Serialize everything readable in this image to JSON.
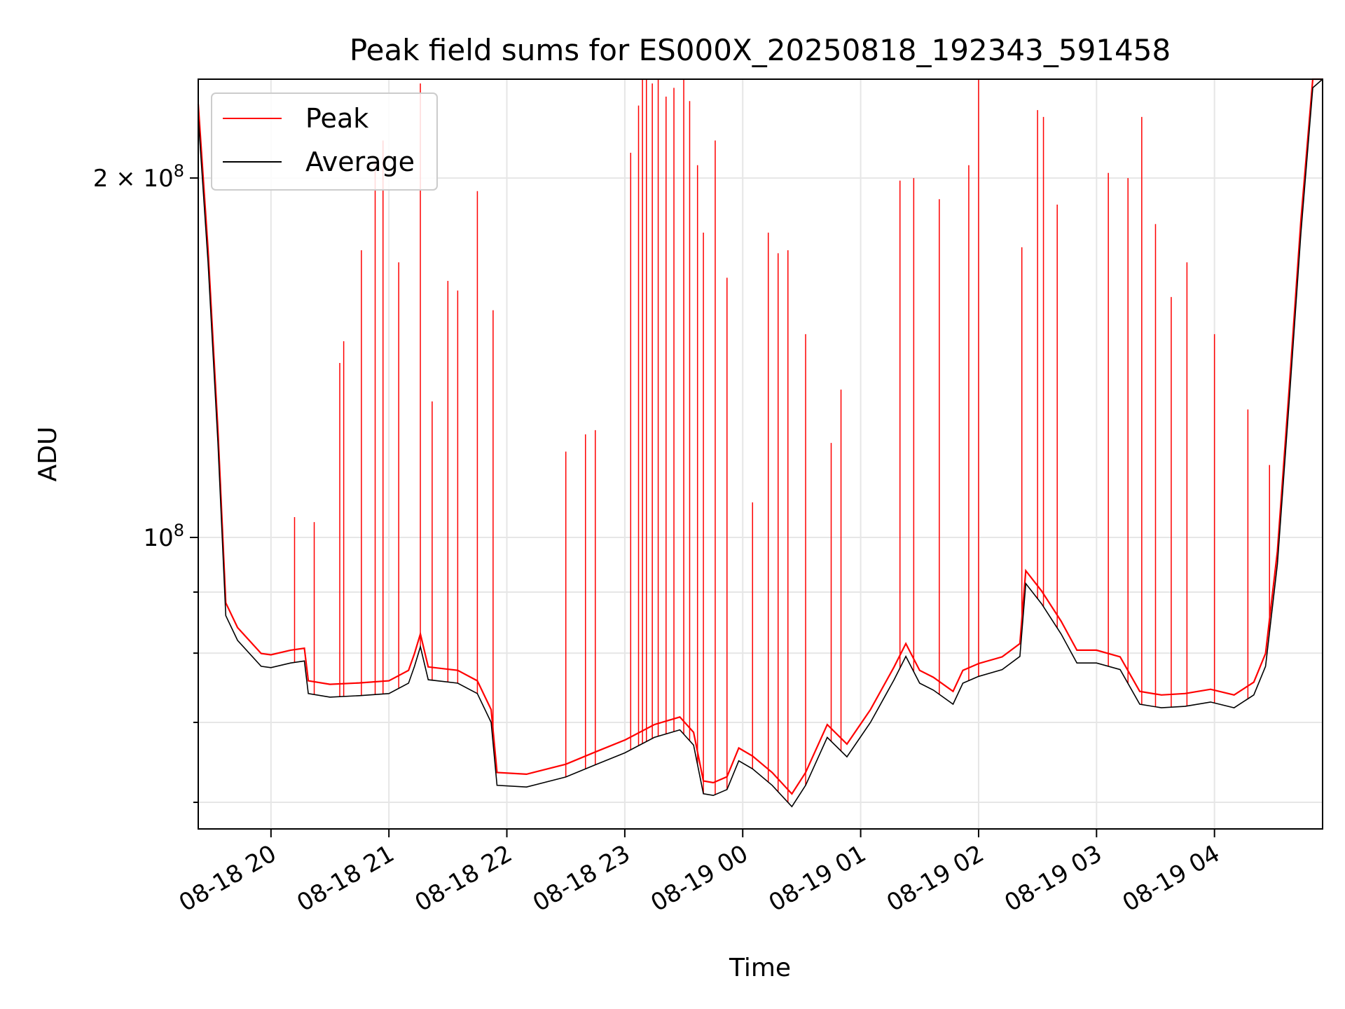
{
  "chart_data": {
    "type": "line",
    "title": "Peak field sums for ES000X_20250818_192343_591458",
    "xlabel": "Time",
    "ylabel": "ADU",
    "yscale": "log",
    "ylim": [
      57000000,
      242000000
    ],
    "xlim": [
      "2025-08-18 19:23",
      "2025-08-19 04:55"
    ],
    "x_ticks": [
      {
        "t": "2025-08-18 20:00",
        "label": "08-18 20"
      },
      {
        "t": "2025-08-18 21:00",
        "label": "08-18 21"
      },
      {
        "t": "2025-08-18 22:00",
        "label": "08-18 22"
      },
      {
        "t": "2025-08-18 23:00",
        "label": "08-18 23"
      },
      {
        "t": "2025-08-19 00:00",
        "label": "08-19 00"
      },
      {
        "t": "2025-08-19 01:00",
        "label": "08-19 01"
      },
      {
        "t": "2025-08-19 02:00",
        "label": "08-19 02"
      },
      {
        "t": "2025-08-19 03:00",
        "label": "08-19 03"
      },
      {
        "t": "2025-08-19 04:00",
        "label": "08-19 04"
      }
    ],
    "y_ticks_major": [
      {
        "value": 100000000,
        "base": "10",
        "exp": "8",
        "coef": ""
      },
      {
        "value": 200000000,
        "base": "10",
        "exp": "8",
        "coef": "2 × "
      }
    ],
    "y_ticks_minor": [
      60000000,
      70000000,
      80000000,
      90000000
    ],
    "grid": true,
    "legend_position": "top-left",
    "series": [
      {
        "name": "Peak",
        "color": "#ff0000",
        "note": "baseline follows Average; frequent spikes",
        "spikes": [
          [
            "2025-08-18 20:12",
            104000000
          ],
          [
            "2025-08-18 20:22",
            103000000
          ],
          [
            "2025-08-18 20:35",
            140000000
          ],
          [
            "2025-08-18 20:37",
            146000000
          ],
          [
            "2025-08-18 20:46",
            174000000
          ],
          [
            "2025-08-18 20:53",
            207000000
          ],
          [
            "2025-08-18 20:57",
            215000000
          ],
          [
            "2025-08-18 21:05",
            170000000
          ],
          [
            "2025-08-18 21:16",
            240000000
          ],
          [
            "2025-08-18 21:22",
            130000000
          ],
          [
            "2025-08-18 21:30",
            164000000
          ],
          [
            "2025-08-18 21:35",
            161000000
          ],
          [
            "2025-08-18 21:45",
            195000000
          ],
          [
            "2025-08-18 21:53",
            155000000
          ],
          [
            "2025-08-18 22:30",
            118000000
          ],
          [
            "2025-08-18 22:40",
            122000000
          ],
          [
            "2025-08-18 22:45",
            123000000
          ],
          [
            "2025-08-18 23:03",
            210000000
          ],
          [
            "2025-08-18 23:07",
            230000000
          ],
          [
            "2025-08-18 23:09",
            242000000
          ],
          [
            "2025-08-18 23:11",
            242000000
          ],
          [
            "2025-08-18 23:14",
            240000000
          ],
          [
            "2025-08-18 23:17",
            242000000
          ],
          [
            "2025-08-18 23:21",
            234000000
          ],
          [
            "2025-08-18 23:25",
            238000000
          ],
          [
            "2025-08-18 23:30",
            242000000
          ],
          [
            "2025-08-18 23:33",
            232000000
          ],
          [
            "2025-08-18 23:37",
            205000000
          ],
          [
            "2025-08-18 23:40",
            180000000
          ],
          [
            "2025-08-18 23:46",
            215000000
          ],
          [
            "2025-08-18 23:52",
            165000000
          ],
          [
            "2025-08-19 00:05",
            107000000
          ],
          [
            "2025-08-19 00:13",
            180000000
          ],
          [
            "2025-08-19 00:18",
            173000000
          ],
          [
            "2025-08-19 00:23",
            174000000
          ],
          [
            "2025-08-19 00:32",
            148000000
          ],
          [
            "2025-08-19 00:45",
            120000000
          ],
          [
            "2025-08-19 00:50",
            133000000
          ],
          [
            "2025-08-19 01:20",
            199000000
          ],
          [
            "2025-08-19 01:27",
            200000000
          ],
          [
            "2025-08-19 01:40",
            192000000
          ],
          [
            "2025-08-19 01:55",
            205000000
          ],
          [
            "2025-08-19 02:00",
            242000000
          ],
          [
            "2025-08-19 02:22",
            175000000
          ],
          [
            "2025-08-19 02:30",
            228000000
          ],
          [
            "2025-08-19 02:33",
            225000000
          ],
          [
            "2025-08-19 02:40",
            190000000
          ],
          [
            "2025-08-19 03:06",
            202000000
          ],
          [
            "2025-08-19 03:16",
            200000000
          ],
          [
            "2025-08-19 03:23",
            225000000
          ],
          [
            "2025-08-19 03:30",
            183000000
          ],
          [
            "2025-08-19 03:38",
            159000000
          ],
          [
            "2025-08-19 03:46",
            170000000
          ],
          [
            "2025-08-19 04:00",
            148000000
          ],
          [
            "2025-08-19 04:17",
            128000000
          ],
          [
            "2025-08-19 04:28",
            115000000
          ]
        ]
      },
      {
        "name": "Average",
        "color": "#000000",
        "points": [
          [
            "2025-08-18 19:23",
            225000000
          ],
          [
            "2025-08-18 19:28",
            170000000
          ],
          [
            "2025-08-18 19:33",
            120000000
          ],
          [
            "2025-08-18 19:37",
            86000000
          ],
          [
            "2025-08-18 19:43",
            82000000
          ],
          [
            "2025-08-18 19:55",
            78000000
          ],
          [
            "2025-08-18 20:00",
            77800000
          ],
          [
            "2025-08-18 20:10",
            78500000
          ],
          [
            "2025-08-18 20:17",
            78800000
          ],
          [
            "2025-08-18 20:19",
            74000000
          ],
          [
            "2025-08-18 20:30",
            73500000
          ],
          [
            "2025-08-18 20:45",
            73700000
          ],
          [
            "2025-08-18 21:00",
            74000000
          ],
          [
            "2025-08-18 21:10",
            75500000
          ],
          [
            "2025-08-18 21:13",
            78000000
          ],
          [
            "2025-08-18 21:16",
            81000000
          ],
          [
            "2025-08-18 21:20",
            76000000
          ],
          [
            "2025-08-18 21:35",
            75500000
          ],
          [
            "2025-08-18 21:45",
            74000000
          ],
          [
            "2025-08-18 21:52",
            70000000
          ],
          [
            "2025-08-18 21:55",
            62000000
          ],
          [
            "2025-08-18 22:10",
            61800000
          ],
          [
            "2025-08-18 22:30",
            63000000
          ],
          [
            "2025-08-18 22:45",
            64500000
          ],
          [
            "2025-08-18 23:00",
            66000000
          ],
          [
            "2025-08-18 23:15",
            68000000
          ],
          [
            "2025-08-18 23:28",
            69000000
          ],
          [
            "2025-08-18 23:35",
            67000000
          ],
          [
            "2025-08-18 23:40",
            61000000
          ],
          [
            "2025-08-18 23:45",
            60800000
          ],
          [
            "2025-08-18 23:52",
            61500000
          ],
          [
            "2025-08-18 23:58",
            65000000
          ],
          [
            "2025-08-19 00:05",
            64000000
          ],
          [
            "2025-08-19 00:15",
            62000000
          ],
          [
            "2025-08-19 00:25",
            59500000
          ],
          [
            "2025-08-19 00:32",
            62000000
          ],
          [
            "2025-08-19 00:43",
            68000000
          ],
          [
            "2025-08-19 00:53",
            65500000
          ],
          [
            "2025-08-19 01:05",
            70000000
          ],
          [
            "2025-08-19 01:17",
            76000000
          ],
          [
            "2025-08-19 01:23",
            79500000
          ],
          [
            "2025-08-19 01:30",
            75500000
          ],
          [
            "2025-08-19 01:37",
            74500000
          ],
          [
            "2025-08-19 01:47",
            72500000
          ],
          [
            "2025-08-19 01:52",
            75500000
          ],
          [
            "2025-08-19 02:00",
            76500000
          ],
          [
            "2025-08-19 02:12",
            77500000
          ],
          [
            "2025-08-19 02:21",
            79500000
          ],
          [
            "2025-08-19 02:24",
            91500000
          ],
          [
            "2025-08-19 02:32",
            88000000
          ],
          [
            "2025-08-19 02:42",
            83000000
          ],
          [
            "2025-08-19 02:50",
            78500000
          ],
          [
            "2025-08-19 03:00",
            78500000
          ],
          [
            "2025-08-19 03:12",
            77500000
          ],
          [
            "2025-08-19 03:22",
            72500000
          ],
          [
            "2025-08-19 03:33",
            72000000
          ],
          [
            "2025-08-19 03:45",
            72200000
          ],
          [
            "2025-08-19 03:58",
            72800000
          ],
          [
            "2025-08-19 04:10",
            72000000
          ],
          [
            "2025-08-19 04:20",
            73800000
          ],
          [
            "2025-08-19 04:26",
            78000000
          ],
          [
            "2025-08-19 04:32",
            95000000
          ],
          [
            "2025-08-19 04:38",
            130000000
          ],
          [
            "2025-08-19 04:44",
            180000000
          ],
          [
            "2025-08-19 04:50",
            238000000
          ],
          [
            "2025-08-19 04:55",
            242000000
          ]
        ]
      }
    ]
  }
}
